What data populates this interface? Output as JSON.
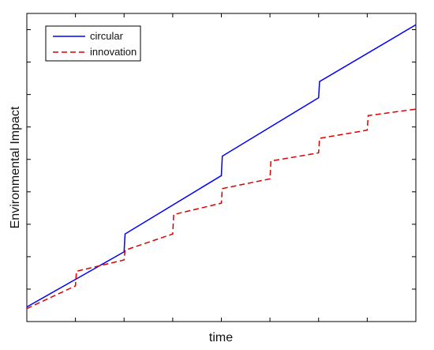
{
  "chart_data": {
    "type": "line",
    "xlabel": "time",
    "ylabel": "Environmental Impact",
    "xlim": [
      0,
      8
    ],
    "ylim": [
      0,
      9.5
    ],
    "grid": false,
    "legend_position": "top-left",
    "series": [
      {
        "name": "circular",
        "color": "#0000ff",
        "style": "solid",
        "points": [
          [
            0,
            0.45
          ],
          [
            2,
            2.15
          ],
          [
            2.02,
            2.7
          ],
          [
            4,
            4.5
          ],
          [
            4.02,
            5.1
          ],
          [
            6,
            6.9
          ],
          [
            6.02,
            7.4
          ],
          [
            8,
            9.15
          ]
        ]
      },
      {
        "name": "innovation",
        "color": "#dd0000",
        "style": "dashed",
        "points": [
          [
            0,
            0.4
          ],
          [
            1,
            1.1
          ],
          [
            1.02,
            1.55
          ],
          [
            2,
            1.9
          ],
          [
            2.02,
            2.2
          ],
          [
            3,
            2.7
          ],
          [
            3.02,
            3.3
          ],
          [
            4,
            3.65
          ],
          [
            4.02,
            4.1
          ],
          [
            5,
            4.4
          ],
          [
            5.02,
            4.95
          ],
          [
            6,
            5.2
          ],
          [
            6.02,
            5.65
          ],
          [
            7,
            5.9
          ],
          [
            7.02,
            6.35
          ],
          [
            8,
            6.55
          ]
        ]
      }
    ]
  }
}
